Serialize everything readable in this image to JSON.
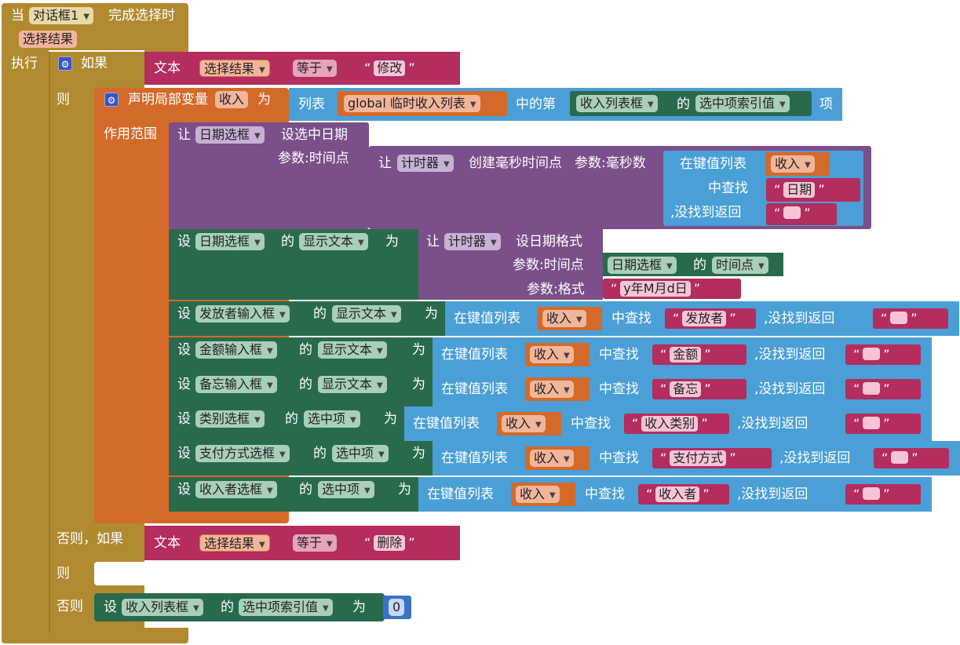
{
  "colors": {
    "event": "#b08a30",
    "control": "#7c9a38",
    "variable": "#d36a2a",
    "text": "#b32d5e",
    "list": "#4a9fd6",
    "component": "#7a4f8a",
    "setter": "#2a6a4c",
    "math": "#3a72c4"
  },
  "event": {
    "when": "当",
    "component": "对话框1",
    "event_name": "完成选择时",
    "param": "选择结果",
    "do": "执行"
  },
  "if1": {
    "if_label": "如果",
    "text_label": "文本",
    "var": "选择结果",
    "op": "等于",
    "value": "修改",
    "then": "则"
  },
  "local": {
    "declare": "声明局部变量",
    "name": "收入",
    "as": "为",
    "scope": "作用范围",
    "list_label": "列表",
    "list_var": "global 临时收入列表",
    "index_of": "中的第",
    "component": "收入列表框",
    "of": "的",
    "prop": "选中项索引值",
    "item": "项"
  },
  "setdate": {
    "let": "让",
    "component": "日期选框",
    "method": "设选中日期",
    "param": "参数:时间点",
    "clock": "计时器",
    "clock_method": "创建毫秒时间点",
    "ms_param": "参数:毫秒数",
    "lookup_label": "在键值列表",
    "lookup_var": "收入",
    "find": "中查找",
    "key": "日期",
    "notfound": ",没找到返回"
  },
  "setdisp": {
    "set": "设",
    "component": "日期选框",
    "of": "的",
    "prop": "显示文本",
    "to": "为",
    "let": "让",
    "clock": "计时器",
    "method": "设日期格式",
    "param1": "参数:时间点",
    "src_component": "日期选框",
    "src_prop": "时间点",
    "param2": "参数:格式",
    "format": "y年M月d日"
  },
  "setters": [
    {
      "set": "设",
      "component": "发放者输入框",
      "of": "的",
      "prop": "显示文本",
      "to": "为",
      "lookup": "在键值列表",
      "var": "收入",
      "find": "中查找",
      "key": "发放者",
      "notfound": ",没找到返回"
    },
    {
      "set": "设",
      "component": "金额输入框",
      "of": "的",
      "prop": "显示文本",
      "to": "为",
      "lookup": "在键值列表",
      "var": "收入",
      "find": "中查找",
      "key": "金额",
      "notfound": ",没找到返回"
    },
    {
      "set": "设",
      "component": "备忘输入框",
      "of": "的",
      "prop": "显示文本",
      "to": "为",
      "lookup": "在键值列表",
      "var": "收入",
      "find": "中查找",
      "key": "备忘",
      "notfound": ",没找到返回"
    },
    {
      "set": "设",
      "component": "类别选框",
      "of": "的",
      "prop": "选中项",
      "to": "为",
      "lookup": "在键值列表",
      "var": "收入",
      "find": "中查找",
      "key": "收入类别",
      "notfound": ",没找到返回"
    },
    {
      "set": "设",
      "component": "支付方式选框",
      "of": "的",
      "prop": "选中项",
      "to": "为",
      "lookup": "在键值列表",
      "var": "收入",
      "find": "中查找",
      "key": "支付方式",
      "notfound": ",没找到返回"
    },
    {
      "set": "设",
      "component": "收入者选框",
      "of": "的",
      "prop": "选中项",
      "to": "为",
      "lookup": "在键值列表",
      "var": "收入",
      "find": "中查找",
      "key": "收入者",
      "notfound": ",没找到返回"
    }
  ],
  "elseif": {
    "label": "否则，如果",
    "text_label": "文本",
    "var": "选择结果",
    "op": "等于",
    "value": "删除",
    "then": "则"
  },
  "else": {
    "label": "否则",
    "set": "设",
    "component": "收入列表框",
    "of": "的",
    "prop": "选中项索引值",
    "to": "为",
    "value": "0"
  },
  "quote_open": "“",
  "quote_close": "”",
  "dropdown_arrow": "▼"
}
